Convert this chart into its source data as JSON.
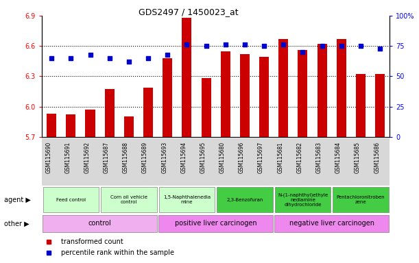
{
  "title": "GDS2497 / 1450023_at",
  "samples": [
    "GSM115690",
    "GSM115691",
    "GSM115692",
    "GSM115687",
    "GSM115688",
    "GSM115689",
    "GSM115693",
    "GSM115694",
    "GSM115695",
    "GSM115680",
    "GSM115696",
    "GSM115697",
    "GSM115681",
    "GSM115682",
    "GSM115683",
    "GSM115684",
    "GSM115685",
    "GSM115686"
  ],
  "bar_values": [
    5.93,
    5.92,
    5.97,
    6.17,
    5.9,
    6.19,
    6.48,
    6.88,
    6.28,
    6.55,
    6.52,
    6.49,
    6.67,
    6.56,
    6.62,
    6.67,
    6.32,
    6.32
  ],
  "dot_values": [
    65,
    65,
    68,
    65,
    62,
    65,
    68,
    76,
    75,
    76,
    76,
    75,
    76,
    70,
    75,
    75,
    75,
    73
  ],
  "ylim_left": [
    5.7,
    6.9
  ],
  "ylim_right": [
    0,
    100
  ],
  "yticks_left": [
    5.7,
    6.0,
    6.3,
    6.6,
    6.9
  ],
  "yticks_right": [
    0,
    25,
    50,
    75,
    100
  ],
  "bar_color": "#cc0000",
  "dot_color": "#0000cc",
  "dotted_line_values": [
    6.0,
    6.3,
    6.6
  ],
  "agent_groups": [
    {
      "label": "Feed control",
      "start": 0,
      "end": 3,
      "color": "#ccffcc"
    },
    {
      "label": "Corn oil vehicle\ncontrol",
      "start": 3,
      "end": 6,
      "color": "#ccffcc"
    },
    {
      "label": "1,5-Naphthalenedia\nmine",
      "start": 6,
      "end": 9,
      "color": "#ccffcc"
    },
    {
      "label": "2,3-Benzofuran",
      "start": 9,
      "end": 12,
      "color": "#44cc44"
    },
    {
      "label": "N-(1-naphthyl)ethyle\nnediamine\ndihydrochloride",
      "start": 12,
      "end": 15,
      "color": "#44cc44"
    },
    {
      "label": "Pentachloronitroben\nzene",
      "start": 15,
      "end": 18,
      "color": "#44cc44"
    }
  ],
  "other_groups": [
    {
      "label": "control",
      "start": 0,
      "end": 6,
      "color": "#f0b0f0"
    },
    {
      "label": "positive liver carcinogen",
      "start": 6,
      "end": 12,
      "color": "#ee88ee"
    },
    {
      "label": "negative liver carcinogen",
      "start": 12,
      "end": 18,
      "color": "#ee88ee"
    }
  ],
  "legend_items": [
    {
      "label": "transformed count",
      "color": "#cc0000"
    },
    {
      "label": "percentile rank within the sample",
      "color": "#0000cc"
    }
  ],
  "xlabels_bg": "#d8d8d8",
  "plot_bg": "#ffffff",
  "agent_label_left": "agent",
  "other_label_left": "other"
}
